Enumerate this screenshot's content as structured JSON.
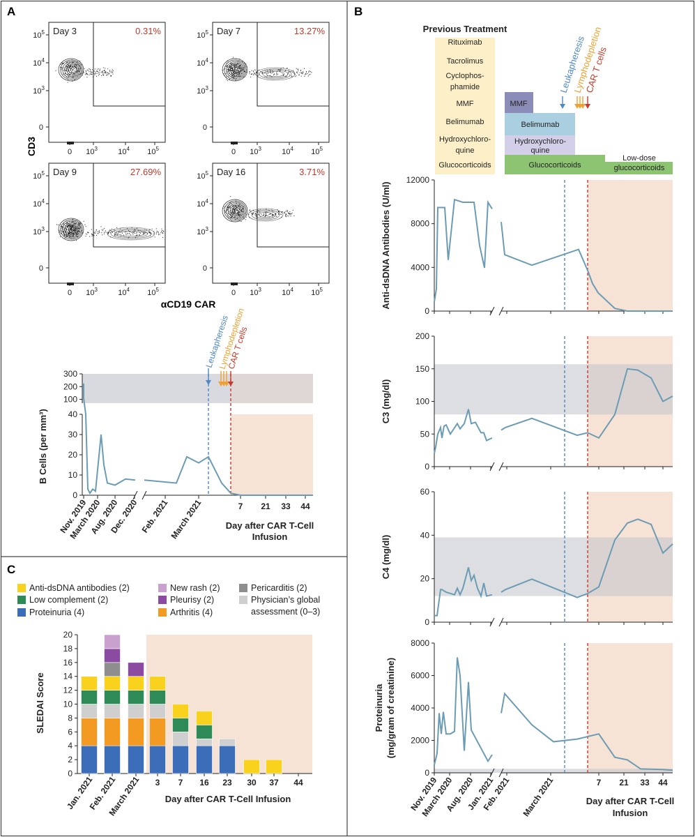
{
  "panels": {
    "a": "A",
    "b": "B",
    "c": "C"
  },
  "colors": {
    "line": "#6b9cb4",
    "grey_band": "#d9dadf",
    "pink_band": "#f7e2d6",
    "leuk": "#4f87c8",
    "lymph": "#f0a030",
    "car": "#c83a2a",
    "red_text": "#c0392b",
    "prev_box": "#fdf0c8",
    "mmf": "#8c8cb8",
    "belimumab": "#a9cfe0",
    "hcq": "#d3cfe8",
    "gc": "#8dc472"
  },
  "arrows": {
    "leuk": "Leukapheresis",
    "lymph": "Lymphodepletion",
    "car": "CAR T cells"
  },
  "panel_a": {
    "flow": [
      {
        "day": "Day 3",
        "pct": "0.31%"
      },
      {
        "day": "Day 7",
        "pct": "13.27%"
      },
      {
        "day": "Day 9",
        "pct": "27.69%"
      },
      {
        "day": "Day 16",
        "pct": "3.71%"
      }
    ],
    "y_label": "CD3",
    "x_label": "αCD19 CAR",
    "flow_ticks": {
      "b": "10",
      "e3": "3",
      "e4": "4",
      "e5": "5",
      "zero": "0"
    },
    "bcell": {
      "y_label": "B Cells (per mm³)",
      "upper_ticks": [
        "100",
        "200",
        "300"
      ],
      "lower_ticks": [
        "0",
        "10",
        "20",
        "30",
        "40"
      ],
      "date_labels": [
        "Nov. 2019",
        "March 2020",
        "Aug. 2020",
        "Dec. 2020",
        "Feb. 2021",
        "March 2021"
      ],
      "day_ticks": [
        "7",
        "21",
        "33",
        "44"
      ],
      "day_title_1": "Day after CAR T-Cell",
      "day_title_2": "Infusion"
    }
  },
  "panel_b": {
    "prev_title": "Previous Treatment",
    "prev_items": [
      "Rituximab",
      "Tacrolimus",
      "Cyclophos-",
      "phamide",
      "MMF",
      "Belimumab",
      "Hydroxychloro-",
      "quine",
      "Glucocorticoids"
    ],
    "bars": {
      "mmf": "MMF",
      "belimumab": "Belimumab",
      "hcq_1": "Hydroxychloro-",
      "hcq_2": "quine",
      "gc": "Glucocorticoids",
      "lowdose_1": "Low-dose",
      "lowdose_2": "glucocorticoids"
    },
    "charts": [
      {
        "y_label": "Anti-dsDNA Antibodies (U/ml)",
        "ticks": [
          "0",
          "4000",
          "8000",
          "12000"
        ]
      },
      {
        "y_label": "C3 (mg/dl)",
        "ticks": [
          "0",
          "50",
          "100",
          "150",
          "200"
        ]
      },
      {
        "y_label": "C4 (mg/dl)",
        "ticks": [
          "0",
          "20",
          "40",
          "60"
        ]
      },
      {
        "y_label": "Proteinuria",
        "y_label_2": "(mg/gram of creatinine)",
        "ticks": [
          "0",
          "2000",
          "4000",
          "6000",
          "8000"
        ]
      }
    ],
    "date_labels": [
      "Nov. 2019",
      "March 2020",
      "Aug. 2020",
      "Jan. 2021",
      "Feb. 2021",
      "March 2021"
    ],
    "day_ticks": [
      "7",
      "21",
      "33",
      "44"
    ],
    "day_title_1": "Day after CAR T-Cell",
    "day_title_2": "Infusion"
  },
  "panel_c": {
    "legend": [
      {
        "label": "Anti-dsDNA antibodies (2)",
        "color": "#f9d21e"
      },
      {
        "label": "Low complement (2)",
        "color": "#2e8b57"
      },
      {
        "label": "Proteinuria (4)",
        "color": "#3b6db8"
      },
      {
        "label": "New rash (2)",
        "color": "#c9a0d0"
      },
      {
        "label": "Pleurisy (2)",
        "color": "#8a4ba0"
      },
      {
        "label": "Arthritis (4)",
        "color": "#f29a22"
      },
      {
        "label": "Pericarditis (2)",
        "color": "#8e8e8e"
      },
      {
        "label": "Physician’s global",
        "label_2": "assessment (0–3)",
        "color": "#cfcfcf"
      }
    ],
    "y_label": "SLEDAI Score",
    "x_title": "Day after CAR T-Cell Infusion",
    "y_ticks": [
      "0",
      "2",
      "4",
      "6",
      "8",
      "10",
      "12",
      "14",
      "16",
      "18",
      "20"
    ],
    "date_labels": [
      "Jan. 2021",
      "Feb. 2021",
      "March 2021"
    ]
  },
  "chart_data": [
    {
      "type": "line",
      "panel": "A-B cells",
      "ylabel": "B Cells (per mm³)",
      "x": [
        "Nov. 2019",
        "March 2020",
        "Aug. 2020",
        "Dec. 2020",
        "Feb. 2021",
        "March 2021",
        "Day 7",
        "Day 21",
        "Day 33",
        "Day 44"
      ],
      "values": [
        225,
        2,
        30,
        15,
        8,
        6,
        19,
        16,
        19,
        0
      ]
    },
    {
      "type": "line",
      "panel": "B-anti-dsDNA",
      "ylabel": "Anti-dsDNA Antibodies (U/ml)",
      "ylim": [
        0,
        12000
      ],
      "values": [
        700,
        9500,
        4700,
        10200,
        10000,
        4000,
        10000,
        6500,
        5100,
        4200,
        5600,
        3700,
        2500,
        1700,
        200,
        0,
        0
      ]
    },
    {
      "type": "line",
      "panel": "B-C3",
      "ylabel": "C3 (mg/dl)",
      "ylim": [
        0,
        200
      ],
      "values": [
        20,
        60,
        45,
        65,
        88,
        65,
        40,
        45,
        58,
        75,
        50,
        52,
        45,
        80,
        150,
        147,
        137,
        100,
        108
      ]
    },
    {
      "type": "line",
      "panel": "B-C4",
      "ylabel": "C4 (mg/dl)",
      "ylim": [
        0,
        60
      ],
      "values": [
        3,
        15,
        12,
        25,
        18,
        12,
        14,
        20,
        11,
        13,
        16,
        38,
        46,
        48,
        45,
        32,
        36
      ]
    },
    {
      "type": "line",
      "panel": "B-proteinuria",
      "ylabel": "Proteinuria (mg/gram of creatinine)",
      "ylim": [
        0,
        8000
      ],
      "values": [
        500,
        3700,
        2300,
        7100,
        6000,
        1300,
        5600,
        700,
        3700,
        4900,
        3000,
        1900,
        2100,
        2400,
        950,
        800,
        250,
        200
      ]
    },
    {
      "type": "bar",
      "stacked": true,
      "panel": "C",
      "ylabel": "SLEDAI Score",
      "ylim": [
        0,
        20
      ],
      "categories": [
        "Jan. 2021",
        "Feb. 2021",
        "March 2021",
        "3",
        "7",
        "16",
        "23",
        "30",
        "37",
        "44"
      ],
      "series": [
        {
          "name": "Proteinuria (4)",
          "values": [
            4,
            4,
            4,
            4,
            4,
            4,
            4,
            0,
            0,
            0
          ]
        },
        {
          "name": "Arthritis (4)",
          "values": [
            4,
            4,
            4,
            4,
            0,
            0,
            0,
            0,
            0,
            0
          ]
        },
        {
          "name": "Physician’s global assessment (0–3)",
          "values": [
            2,
            2,
            2,
            2,
            2,
            1,
            1,
            0,
            0,
            0
          ]
        },
        {
          "name": "Low complement (2)",
          "values": [
            2,
            2,
            2,
            2,
            2,
            2,
            0,
            0,
            0,
            0
          ]
        },
        {
          "name": "Anti-dsDNA antibodies (2)",
          "values": [
            2,
            2,
            2,
            2,
            2,
            2,
            0,
            2,
            2,
            0
          ]
        },
        {
          "name": "Pericarditis (2)",
          "values": [
            0,
            2,
            0,
            0,
            0,
            0,
            0,
            0,
            0,
            0
          ]
        },
        {
          "name": "Pleurisy (2)",
          "values": [
            0,
            2,
            2,
            0,
            0,
            0,
            0,
            0,
            0,
            0
          ]
        },
        {
          "name": "New rash (2)",
          "values": [
            0,
            2,
            0,
            0,
            0,
            0,
            0,
            0,
            0,
            0
          ]
        }
      ]
    }
  ]
}
